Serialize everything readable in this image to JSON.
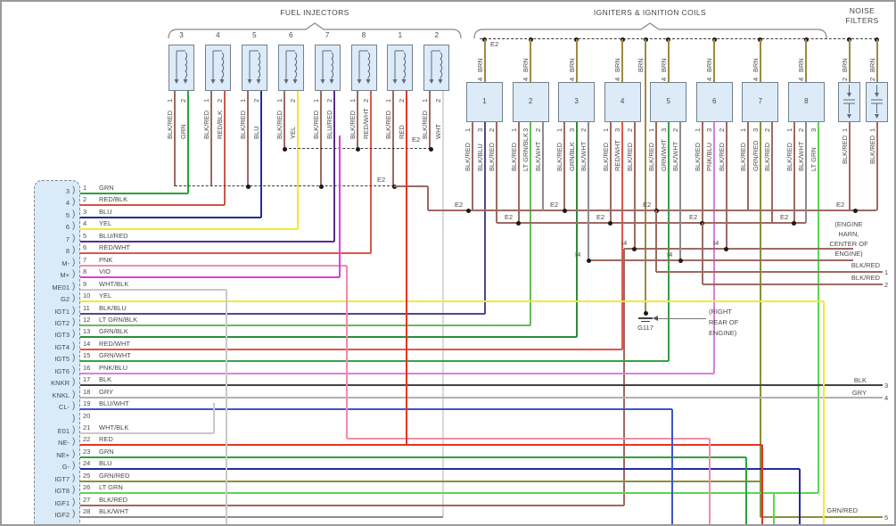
{
  "titles": {
    "fuel_injectors": "FUEL INJECTORS",
    "igniters": "IGNITERS & IGNITION COILS"
  },
  "wire_colors": {
    "GRN": "#2aa33b",
    "RED/BLK": "#cf5449",
    "BLU": "#232c9e",
    "YEL": "#f2ea30",
    "BLU/RED": "#5b2d8c",
    "RED/WHT": "#e0564c",
    "PNK": "#f08cab",
    "VIO": "#d93fd9",
    "WHT/BLK": "#c9c9c9",
    "BLK/BLU": "#4a4a8c",
    "LT GRN/BLK": "#66bb55",
    "GRN/BLK": "#2e8b3a",
    "GRN/WHT": "#38a047",
    "PNK/BLU": "#d981d9",
    "BLK": "#434343",
    "GRY": "#b0b0b0",
    "BLU/WHT": "#3d56c9",
    "RED": "#e33524",
    "GRN/RED": "#8a8f3a",
    "LT GRN": "#5cd653",
    "BLK/RED": "#9c6a62",
    "BLK/WHT": "#8c8c8c",
    "BRN": "#9c8a3f",
    "WHT": "#d9d9d9"
  },
  "injectors": {
    "numbers": [
      "3",
      "4",
      "5",
      "6",
      "7",
      "8",
      "1",
      "2"
    ],
    "pin1": {
      "pin": "1",
      "color": "BLK/RED"
    },
    "pin2_pin": "2",
    "pin2_colors": [
      "GRN",
      "RED/BLK",
      "BLU",
      "YEL",
      "BLU/RED",
      "RED/WHT",
      "RED",
      "WHT"
    ]
  },
  "igniters": {
    "numbers": [
      "1",
      "2",
      "3",
      "4",
      "5",
      "6",
      "7",
      "8"
    ],
    "top_pin": "4",
    "top_color": "BRN",
    "wires": [
      [
        {
          "pin": "1",
          "color": "BLK/RED"
        },
        {
          "pin": "3",
          "color": "BLK/BLU"
        },
        {
          "pin": "2",
          "color": "BLK/RED"
        }
      ],
      [
        {
          "pin": "1",
          "color": "BLK/RED"
        },
        {
          "pin": "3",
          "color": "LT GRN/BLK"
        },
        {
          "pin": "2",
          "color": "BLK/WHT"
        }
      ],
      [
        {
          "pin": "1",
          "color": "BLK/RED"
        },
        {
          "pin": "3",
          "color": "GRN/BLK"
        },
        {
          "pin": "2",
          "color": "BLK/WHT"
        }
      ],
      [
        {
          "pin": "1",
          "color": "BLK/RED"
        },
        {
          "pin": "3",
          "color": "RED/WHT"
        },
        {
          "pin": "2",
          "color": "BLK/RED"
        }
      ],
      [
        {
          "pin": "1",
          "color": "BLK/RED"
        },
        {
          "pin": "3",
          "color": "GRN/WHT"
        },
        {
          "pin": "2",
          "color": "BLK/WHT"
        }
      ],
      [
        {
          "pin": "1",
          "color": "BLK/RED"
        },
        {
          "pin": "3",
          "color": "PNK/BLU"
        },
        {
          "pin": "2",
          "color": "BLK/RED"
        }
      ],
      [
        {
          "pin": "1",
          "color": "BLK/RED"
        },
        {
          "pin": "3",
          "color": "GRN/RED"
        },
        {
          "pin": "2",
          "color": "BLK/RED"
        }
      ],
      [
        {
          "pin": "1",
          "color": "BLK/RED"
        },
        {
          "pin": "2",
          "color": "BLK/WHT"
        },
        {
          "pin": "3",
          "color": "LT GRN"
        }
      ]
    ]
  },
  "noise_filters": {
    "label_lines": [
      "NOISE",
      "FILTERS"
    ],
    "top": {
      "pin": "2",
      "color": "BRN"
    },
    "bottom": {
      "pin": "1",
      "color": "BLK/RED"
    }
  },
  "connector": {
    "rows": [
      {
        "name": "3",
        "pin": "1",
        "color": "GRN"
      },
      {
        "name": "4",
        "pin": "2",
        "color": "RED/BLK"
      },
      {
        "name": "5",
        "pin": "3",
        "color": "BLU"
      },
      {
        "name": "6",
        "pin": "4",
        "color": "YEL"
      },
      {
        "name": "7",
        "pin": "5",
        "color": "BLU/RED"
      },
      {
        "name": "8",
        "pin": "6",
        "color": "RED/WHT"
      },
      {
        "name": "M-",
        "pin": "7",
        "color": "PNK"
      },
      {
        "name": "M+",
        "pin": "8",
        "color": "VIO"
      },
      {
        "name": "ME01",
        "pin": "9",
        "color": "WHT/BLK"
      },
      {
        "name": "G2",
        "pin": "10",
        "color": "YEL"
      },
      {
        "name": "IGT1",
        "pin": "11",
        "color": "BLK/BLU"
      },
      {
        "name": "IGT2",
        "pin": "12",
        "color": "LT GRN/BLK"
      },
      {
        "name": "IGT3",
        "pin": "13",
        "color": "GRN/BLK"
      },
      {
        "name": "IGT4",
        "pin": "14",
        "color": "RED/WHT"
      },
      {
        "name": "IGT5",
        "pin": "15",
        "color": "GRN/WHT"
      },
      {
        "name": "IGT6",
        "pin": "16",
        "color": "PNK/BLU"
      },
      {
        "name": "KNKR",
        "pin": "17",
        "color": "BLK"
      },
      {
        "name": "KNKL",
        "pin": "18",
        "color": "GRY"
      },
      {
        "name": "CL-",
        "pin": "19",
        "color": "BLU/WHT"
      },
      {
        "name": "",
        "pin": "20",
        "color": ""
      },
      {
        "name": "E01",
        "pin": "21",
        "color": "WHT/BLK"
      },
      {
        "name": "NE-",
        "pin": "22",
        "color": "RED"
      },
      {
        "name": "NE+",
        "pin": "23",
        "color": "GRN"
      },
      {
        "name": "G-",
        "pin": "24",
        "color": "BLU"
      },
      {
        "name": "IGT7",
        "pin": "25",
        "color": "GRN/RED"
      },
      {
        "name": "IGT8",
        "pin": "26",
        "color": "LT GRN"
      },
      {
        "name": "IGF1",
        "pin": "27",
        "color": "BLK/RED"
      },
      {
        "name": "IGF2",
        "pin": "28",
        "color": "BLK/WHT"
      }
    ]
  },
  "junctions": {
    "e2": "E2",
    "i4": "I4",
    "g117": "G117"
  },
  "notes": {
    "engine_harn": [
      "(ENGINE",
      "HARN,",
      "CENTER OF",
      "ENGINE)"
    ],
    "right_rear": [
      "(RIGHT",
      "REAR OF",
      "ENGINE)"
    ]
  },
  "right_pins": [
    {
      "label": "BLK/RED",
      "pin": "1"
    },
    {
      "label": "BLK/RED",
      "pin": "2"
    },
    {
      "label": "BLK",
      "pin": "3"
    },
    {
      "label": "GRY",
      "pin": "4"
    },
    {
      "label": "GRN/RED",
      "pin": "5"
    }
  ]
}
